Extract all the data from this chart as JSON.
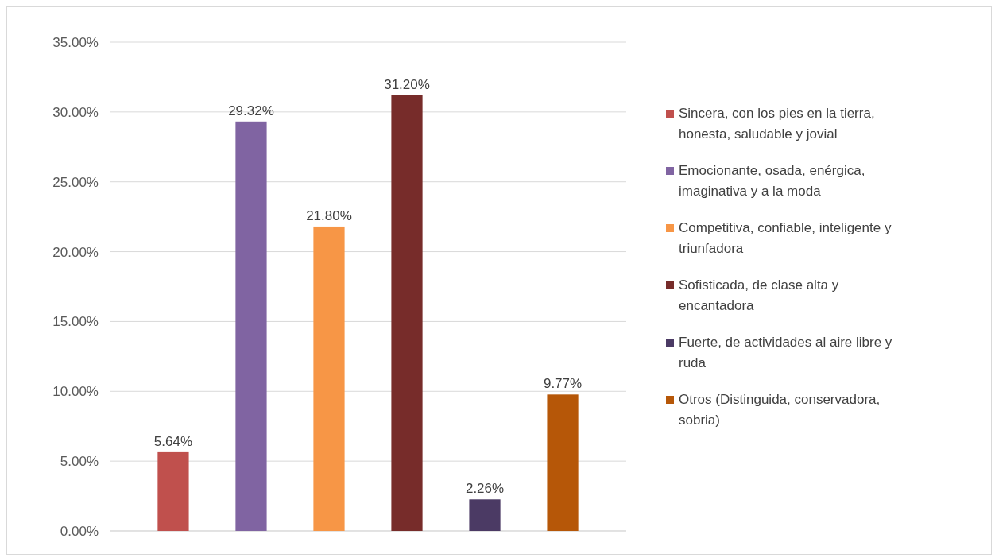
{
  "chart_data": {
    "type": "bar",
    "categories": [
      null
    ],
    "series": [
      {
        "name": "Sincera, con los pies en la tierra, honesta, saludable y jovial",
        "color": "#c0504d",
        "values": [
          5.64
        ],
        "value_labels": [
          "5.64%"
        ]
      },
      {
        "name": "Emocionante, osada, enérgica, imaginativa y a la moda",
        "color": "#8064a2",
        "values": [
          29.32
        ],
        "value_labels": [
          "29.32%"
        ]
      },
      {
        "name": "Competitiva, confiable, inteligente y triunfadora",
        "color": "#f79646",
        "values": [
          21.8
        ],
        "value_labels": [
          "21.80%"
        ]
      },
      {
        "name": "Sofisticada, de clase alta y encantadora",
        "color": "#772c2a",
        "values": [
          31.2
        ],
        "value_labels": [
          "31.20%"
        ]
      },
      {
        "name": "Fuerte, de actividades al aire libre y ruda",
        "color": "#4b3a64",
        "values": [
          2.26
        ],
        "value_labels": [
          "2.26%"
        ]
      },
      {
        "name": "Otros (Distinguida, conservadora, sobria)",
        "color": "#b65708",
        "values": [
          9.77
        ],
        "value_labels": [
          "9.77%"
        ]
      }
    ],
    "ylim": [
      0,
      35
    ],
    "yticks": [
      {
        "value": 0,
        "label": "0.00%"
      },
      {
        "value": 5,
        "label": "5.00%"
      },
      {
        "value": 10,
        "label": "10.00%"
      },
      {
        "value": 15,
        "label": "15.00%"
      },
      {
        "value": 20,
        "label": "20.00%"
      },
      {
        "value": 25,
        "label": "25.00%"
      },
      {
        "value": 30,
        "label": "30.00%"
      },
      {
        "value": 35,
        "label": "35.00%"
      }
    ],
    "grid": "y",
    "legend": "right"
  }
}
